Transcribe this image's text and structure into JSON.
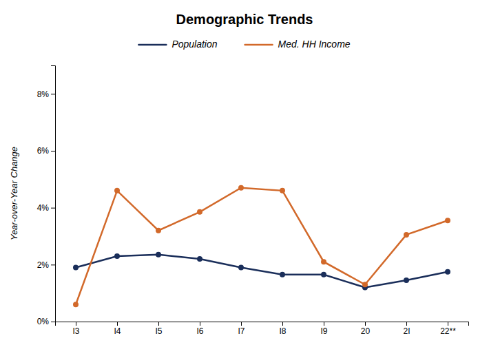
{
  "chart_data": {
    "type": "line",
    "title": "Demographic Trends",
    "ylabel": "Year-over-Year Change",
    "categories": [
      "I3",
      "I4",
      "I5",
      "I6",
      "I7",
      "I8",
      "I9",
      "20",
      "2I",
      "22**"
    ],
    "series": [
      {
        "name": "Population",
        "color": "#1a2e5a",
        "marker": "circle",
        "values": [
          1.9,
          2.3,
          2.35,
          2.2,
          1.9,
          1.65,
          1.65,
          1.2,
          1.45,
          1.75
        ]
      },
      {
        "name": "Med. HH Income",
        "color": "#d2692a",
        "marker": "circle",
        "values": [
          0.6,
          4.6,
          3.2,
          3.85,
          4.7,
          4.6,
          2.1,
          1.3,
          3.05,
          3.55
        ]
      }
    ],
    "ylim": [
      0,
      9
    ],
    "yticks": [
      {
        "value": 0,
        "label": "0%"
      },
      {
        "value": 2,
        "label": "2%"
      },
      {
        "value": 4,
        "label": "4%"
      },
      {
        "value": 6,
        "label": "6%"
      },
      {
        "value": 8,
        "label": "8%"
      }
    ],
    "grid": false,
    "legend": "top"
  }
}
